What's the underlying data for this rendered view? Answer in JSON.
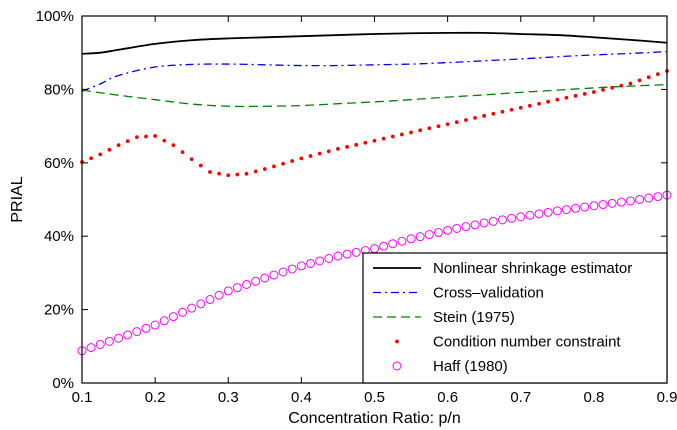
{
  "chart_data": {
    "type": "line",
    "title": "",
    "xlabel": "Concentration Ratio: p/n",
    "ylabel": "PRIAL",
    "xlim": [
      0.1,
      0.9
    ],
    "ylim": [
      0,
      100
    ],
    "x_ticks": [
      "0.1",
      "0.2",
      "0.3",
      "0.4",
      "0.5",
      "0.6",
      "0.7",
      "0.8",
      "0.9"
    ],
    "y_ticks": [
      "0%",
      "20%",
      "40%",
      "60%",
      "80%",
      "100%"
    ],
    "legend_position": "bottom-right",
    "grid": false,
    "series": [
      {
        "name": "Nonlinear shrinkage estimator",
        "style": "solid",
        "color": "#000000",
        "x": [
          0.1,
          0.125,
          0.15,
          0.2,
          0.25,
          0.3,
          0.35,
          0.4,
          0.45,
          0.5,
          0.55,
          0.6,
          0.65,
          0.7,
          0.75,
          0.8,
          0.85,
          0.9
        ],
        "y": [
          89.7,
          90.0,
          90.8,
          92.4,
          93.4,
          93.9,
          94.2,
          94.5,
          94.8,
          95.1,
          95.3,
          95.4,
          95.4,
          95.1,
          94.8,
          94.2,
          93.5,
          92.7
        ]
      },
      {
        "name": "Cross–validation",
        "style": "dashdot",
        "color": "#0000ff",
        "x": [
          0.1,
          0.125,
          0.15,
          0.2,
          0.25,
          0.3,
          0.35,
          0.4,
          0.45,
          0.5,
          0.55,
          0.6,
          0.65,
          0.7,
          0.75,
          0.8,
          0.85,
          0.9
        ],
        "y": [
          79.5,
          81.5,
          83.8,
          86.1,
          86.8,
          86.9,
          86.7,
          86.5,
          86.5,
          86.7,
          86.9,
          87.3,
          87.8,
          88.3,
          88.9,
          89.4,
          89.8,
          90.3
        ]
      },
      {
        "name": "Stein (1975)",
        "style": "dashed",
        "color": "#008000",
        "x": [
          0.1,
          0.15,
          0.2,
          0.25,
          0.3,
          0.35,
          0.4,
          0.45,
          0.5,
          0.55,
          0.6,
          0.65,
          0.7,
          0.75,
          0.8,
          0.85,
          0.9
        ],
        "y": [
          79.8,
          78.4,
          77.2,
          76.0,
          75.4,
          75.4,
          75.6,
          76.1,
          76.6,
          77.2,
          77.9,
          78.5,
          79.2,
          79.8,
          80.4,
          80.9,
          81.3
        ]
      },
      {
        "name": "Condition number constraint",
        "style": "dotted",
        "color": "#ff0000",
        "x": [
          0.1,
          0.125,
          0.15,
          0.175,
          0.2,
          0.225,
          0.25,
          0.275,
          0.3,
          0.325,
          0.35,
          0.4,
          0.45,
          0.5,
          0.55,
          0.6,
          0.65,
          0.7,
          0.75,
          0.8,
          0.85,
          0.9
        ],
        "y": [
          60.2,
          62.3,
          64.8,
          67.0,
          67.3,
          64.8,
          61.0,
          57.5,
          56.6,
          57.0,
          58.3,
          61.2,
          63.8,
          66.0,
          68.3,
          70.5,
          72.8,
          75.0,
          77.2,
          79.3,
          81.6,
          85.0
        ]
      },
      {
        "name": "Haff (1980)",
        "style": "circles",
        "color": "#ff00ff",
        "x": [
          0.1,
          0.15,
          0.2,
          0.25,
          0.3,
          0.35,
          0.4,
          0.45,
          0.5,
          0.55,
          0.6,
          0.65,
          0.7,
          0.75,
          0.8,
          0.85,
          0.9
        ],
        "y": [
          8.8,
          12.2,
          15.8,
          20.4,
          25.1,
          28.6,
          31.9,
          34.6,
          36.6,
          39.3,
          41.6,
          43.6,
          45.3,
          46.9,
          48.3,
          49.6,
          51.2
        ]
      }
    ]
  }
}
